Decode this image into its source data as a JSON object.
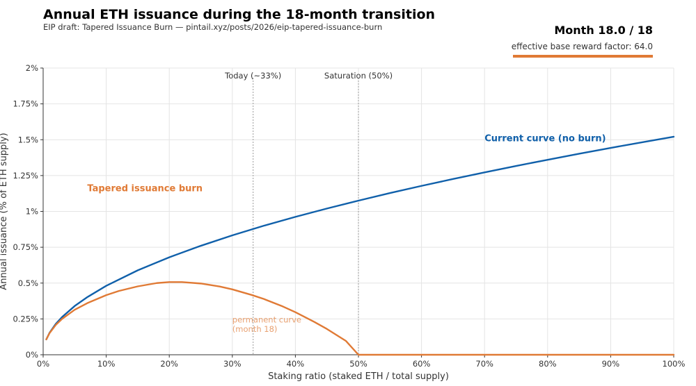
{
  "header": {
    "title": "Annual ETH issuance during the 18-month transition",
    "subtitle": "EIP draft: Tapered Issuance Burn — pintail.xyz/posts/2026/eip-tapered-issuance-burn",
    "month_label": "Month 18.0 / 18",
    "factor_label": "effective base reward factor:  64.0"
  },
  "chart_data": {
    "type": "line",
    "xlabel": "Staking ratio (staked ETH / total supply)",
    "ylabel": "Annual issuance (% of ETH supply)",
    "xlim": [
      0,
      100
    ],
    "ylim": [
      0,
      2
    ],
    "x_ticks": [
      {
        "value": 0,
        "label": "0%"
      },
      {
        "value": 10,
        "label": "10%"
      },
      {
        "value": 20,
        "label": "20%"
      },
      {
        "value": 30,
        "label": "30%"
      },
      {
        "value": 40,
        "label": "40%"
      },
      {
        "value": 50,
        "label": "50%"
      },
      {
        "value": 60,
        "label": "60%"
      },
      {
        "value": 70,
        "label": "70%"
      },
      {
        "value": 80,
        "label": "80%"
      },
      {
        "value": 90,
        "label": "90%"
      },
      {
        "value": 100,
        "label": "100%"
      }
    ],
    "y_ticks": [
      {
        "value": 0,
        "label": "0%"
      },
      {
        "value": 0.25,
        "label": "0.25%"
      },
      {
        "value": 0.5,
        "label": "0.5%"
      },
      {
        "value": 0.75,
        "label": "0.75%"
      },
      {
        "value": 1,
        "label": "1%"
      },
      {
        "value": 1.25,
        "label": "1.25%"
      },
      {
        "value": 1.5,
        "label": "1.5%"
      },
      {
        "value": 1.75,
        "label": "1.75%"
      },
      {
        "value": 2,
        "label": "2%"
      }
    ],
    "grid": true,
    "vlines": [
      {
        "x": 33.3,
        "label": "Today (~33%)"
      },
      {
        "x": 50,
        "label": "Saturation (50%)"
      }
    ],
    "series": [
      {
        "name": "Current curve (no burn)",
        "color": "#1060aa",
        "x": [
          0.5,
          1,
          2,
          3,
          5,
          7,
          10,
          15,
          20,
          25,
          30,
          35,
          40,
          45,
          50,
          55,
          60,
          65,
          70,
          75,
          80,
          85,
          90,
          95,
          100
        ],
        "y": [
          0.107,
          0.152,
          0.215,
          0.263,
          0.34,
          0.402,
          0.481,
          0.589,
          0.68,
          0.76,
          0.833,
          0.9,
          0.962,
          1.02,
          1.075,
          1.128,
          1.178,
          1.226,
          1.272,
          1.317,
          1.36,
          1.402,
          1.443,
          1.482,
          1.521
        ]
      },
      {
        "name": "Tapered issuance burn",
        "color": "#e07a35",
        "x": [
          0.5,
          1,
          2,
          3,
          5,
          7,
          10,
          12,
          15,
          18,
          20,
          22,
          25,
          28,
          30,
          33,
          35,
          38,
          40,
          43,
          45,
          48,
          50,
          55,
          60,
          65,
          70,
          75,
          80,
          85,
          90,
          95,
          100
        ],
        "y": [
          0.107,
          0.15,
          0.208,
          0.25,
          0.314,
          0.36,
          0.416,
          0.445,
          0.477,
          0.5,
          0.507,
          0.507,
          0.497,
          0.476,
          0.456,
          0.418,
          0.389,
          0.337,
          0.297,
          0.229,
          0.18,
          0.097,
          0.0,
          0,
          0,
          0,
          0,
          0,
          0,
          0,
          0,
          0,
          0
        ]
      }
    ],
    "annotations": [
      {
        "text": "Current curve (no burn)",
        "x": 70,
        "y": 1.49,
        "color": "#1060aa"
      },
      {
        "text": "Tapered issuance burn",
        "x": 7,
        "y": 1.14,
        "color": "#e07a35"
      },
      {
        "text": "permanent curve",
        "x": 30,
        "y": 0.225,
        "color": "#e8a070"
      },
      {
        "text": "(month 18)",
        "x": 30,
        "y": 0.16,
        "color": "#e8a070"
      }
    ]
  }
}
